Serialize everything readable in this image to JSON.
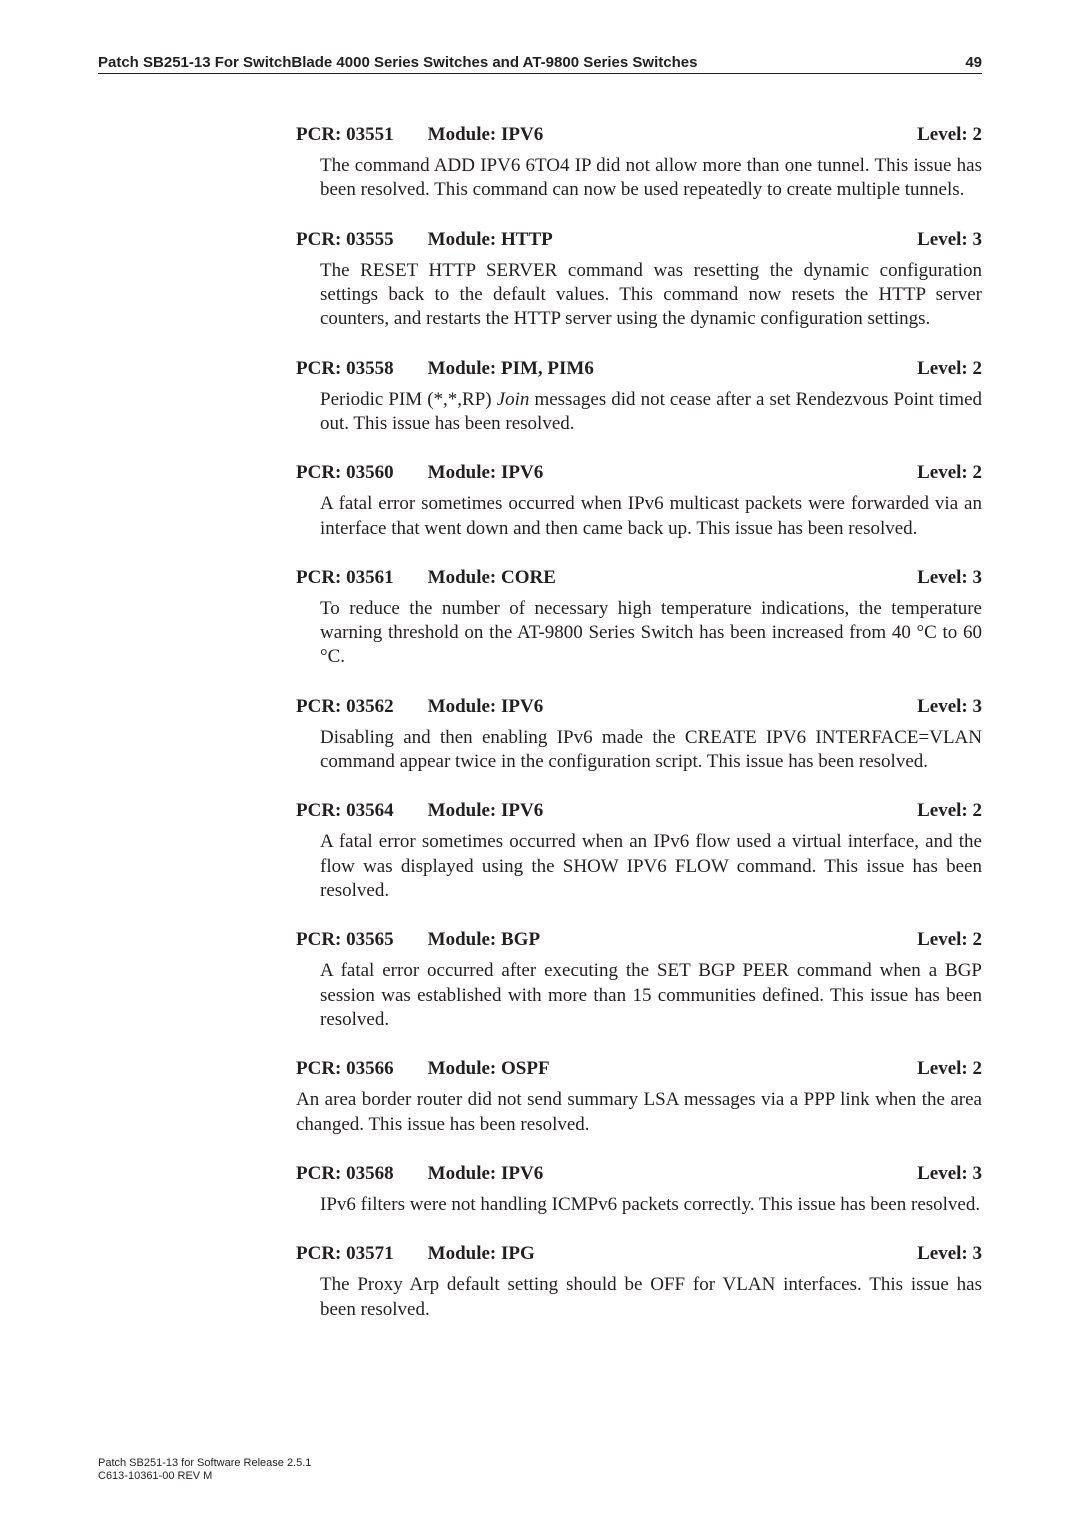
{
  "page": {
    "running_head_title": "Patch SB251-13 For SwitchBlade 4000 Series Switches and AT-9800 Series Switches",
    "page_number": "49",
    "footer_line1": "Patch SB251-13 for Software Release 2.5.1",
    "footer_line2": "C613-10361-00 REV M"
  },
  "entries": [
    {
      "pcr": "PCR: 03551",
      "module": "Module: IPV6",
      "level": "Level: 2",
      "body_html": "The command ADD IPV6 6TO4 IP did not allow more than one tunnel. This issue has been resolved. This command can now be used repeatedly to create multiple tunnels."
    },
    {
      "pcr": "PCR: 03555",
      "module": "Module: HTTP",
      "level": "Level: 3",
      "body_html": "The RESET HTTP SERVER command was resetting the dynamic configuration settings back to the default values. This command now resets the HTTP server counters, and restarts the HTTP server using the dynamic configuration settings."
    },
    {
      "pcr": "PCR: 03558",
      "module": "Module: PIM, PIM6",
      "level": "Level: 2",
      "body_html": "Periodic PIM (*,*,RP) <span class=\"ital\">Join</span> messages did not cease after a set Rendezvous Point timed out. This issue has been resolved."
    },
    {
      "pcr": "PCR: 03560",
      "module": "Module: IPV6",
      "level": "Level: 2",
      "body_html": "A fatal error sometimes occurred when IPv6 multicast packets were forwarded via an interface that went down and then came back up. This issue has been resolved."
    },
    {
      "pcr": "PCR: 03561",
      "module": "Module: CORE",
      "level": "Level: 3",
      "body_html": "To reduce the number of necessary high temperature indications, the temperature warning threshold on the AT-9800 Series Switch has been increased from 40 °C to 60 °C."
    },
    {
      "pcr": "PCR: 03562",
      "module": "Module: IPV6",
      "level": "Level: 3",
      "body_html": "Disabling and then enabling IPv6 made the CREATE IPV6 INTERFACE=VLAN command appear twice in the configuration script. This issue has been resolved."
    },
    {
      "pcr": "PCR: 03564",
      "module": "Module: IPV6",
      "level": "Level: 2",
      "body_html": "A fatal error sometimes occurred when an IPv6 flow used a virtual interface, and the flow was displayed using the SHOW IPV6 FLOW command. This issue has been resolved."
    },
    {
      "pcr": "PCR: 03565",
      "module": "Module: BGP",
      "level": "Level: 2",
      "body_html": "A fatal error occurred after executing the SET BGP PEER command when a BGP session was established with more than 15 communities defined. This issue has been resolved."
    },
    {
      "pcr": "PCR: 03566",
      "module": "Module: OSPF",
      "level": "Level: 2",
      "body_html": "An area border router did not send summary LSA messages via a PPP link when the area changed. This issue has been resolved.",
      "tight": true
    },
    {
      "pcr": "PCR: 03568",
      "module": "Module: IPV6",
      "level": "Level: 3",
      "body_html": "IPv6 filters were not handling ICMPv6 packets correctly. This issue has been resolved."
    },
    {
      "pcr": "PCR: 03571",
      "module": "Module: IPG",
      "level": "Level: 3",
      "body_html": "The Proxy Arp default setting should be OFF for VLAN interfaces. This issue has been resolved."
    }
  ]
}
